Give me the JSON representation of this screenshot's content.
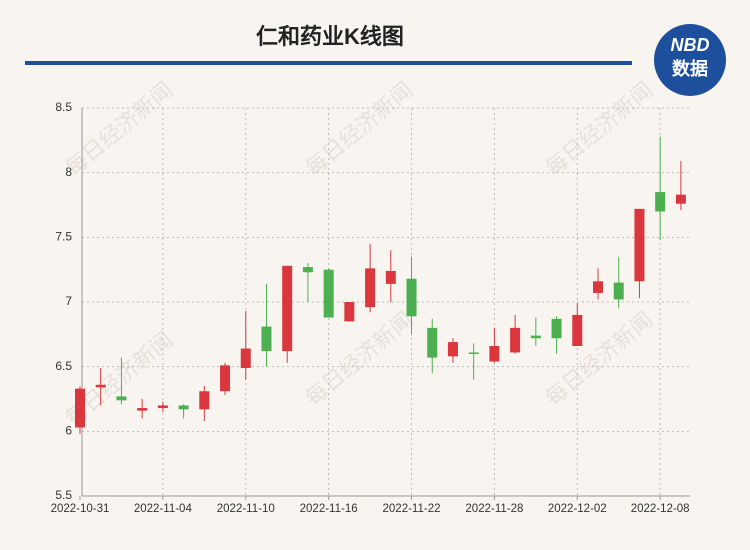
{
  "chart_data": {
    "type": "candlestick",
    "title": "仁和药业K线图",
    "categories": [
      "2022-10-31",
      null,
      null,
      null,
      "2022-11-04",
      null,
      null,
      null,
      "2022-11-10",
      null,
      null,
      null,
      "2022-11-16",
      null,
      null,
      null,
      "2022-11-22",
      null,
      null,
      null,
      "2022-11-28",
      null,
      null,
      null,
      "2022-12-02",
      null,
      null,
      null,
      "2022-12-08",
      null
    ],
    "open": [
      6.03,
      6.34,
      6.27,
      6.16,
      6.18,
      6.2,
      6.17,
      6.31,
      6.49,
      6.81,
      6.62,
      7.27,
      7.25,
      6.85,
      6.96,
      7.14,
      7.18,
      6.8,
      6.58,
      6.61,
      6.54,
      6.61,
      6.74,
      6.87,
      6.66,
      7.07,
      7.15,
      7.16,
      7.85,
      7.76
    ],
    "high": [
      6.35,
      6.49,
      6.57,
      6.25,
      6.23,
      6.21,
      6.35,
      6.53,
      6.93,
      7.14,
      7.28,
      7.3,
      7.26,
      7.0,
      7.45,
      7.4,
      7.35,
      6.87,
      6.72,
      6.68,
      6.8,
      6.9,
      6.88,
      6.89,
      6.99,
      7.26,
      7.35,
      7.72,
      8.28,
      8.09
    ],
    "low": [
      5.98,
      6.2,
      6.21,
      6.1,
      6.15,
      6.1,
      6.08,
      6.28,
      6.4,
      6.5,
      6.53,
      7.0,
      6.88,
      6.85,
      6.92,
      7.0,
      6.75,
      6.45,
      6.53,
      6.4,
      6.53,
      6.6,
      6.66,
      6.6,
      6.66,
      7.02,
      6.95,
      7.03,
      7.48,
      7.71
    ],
    "close": [
      6.33,
      6.36,
      6.24,
      6.18,
      6.2,
      6.17,
      6.31,
      6.51,
      6.64,
      6.62,
      7.28,
      7.23,
      6.88,
      7.0,
      7.26,
      7.24,
      6.89,
      6.57,
      6.69,
      6.6,
      6.66,
      6.8,
      6.72,
      6.72,
      6.9,
      7.16,
      7.02,
      7.72,
      7.7,
      7.83
    ],
    "up_color": "#d9363e",
    "down_color": "#4caf50",
    "ylim": [
      5.5,
      8.5
    ],
    "yticks": [
      5.5,
      6,
      6.5,
      7,
      7.5,
      8,
      8.5
    ],
    "grid": true
  },
  "logo": {
    "top": "NBD",
    "bottom": "数据"
  },
  "watermark": "每日经济新闻"
}
